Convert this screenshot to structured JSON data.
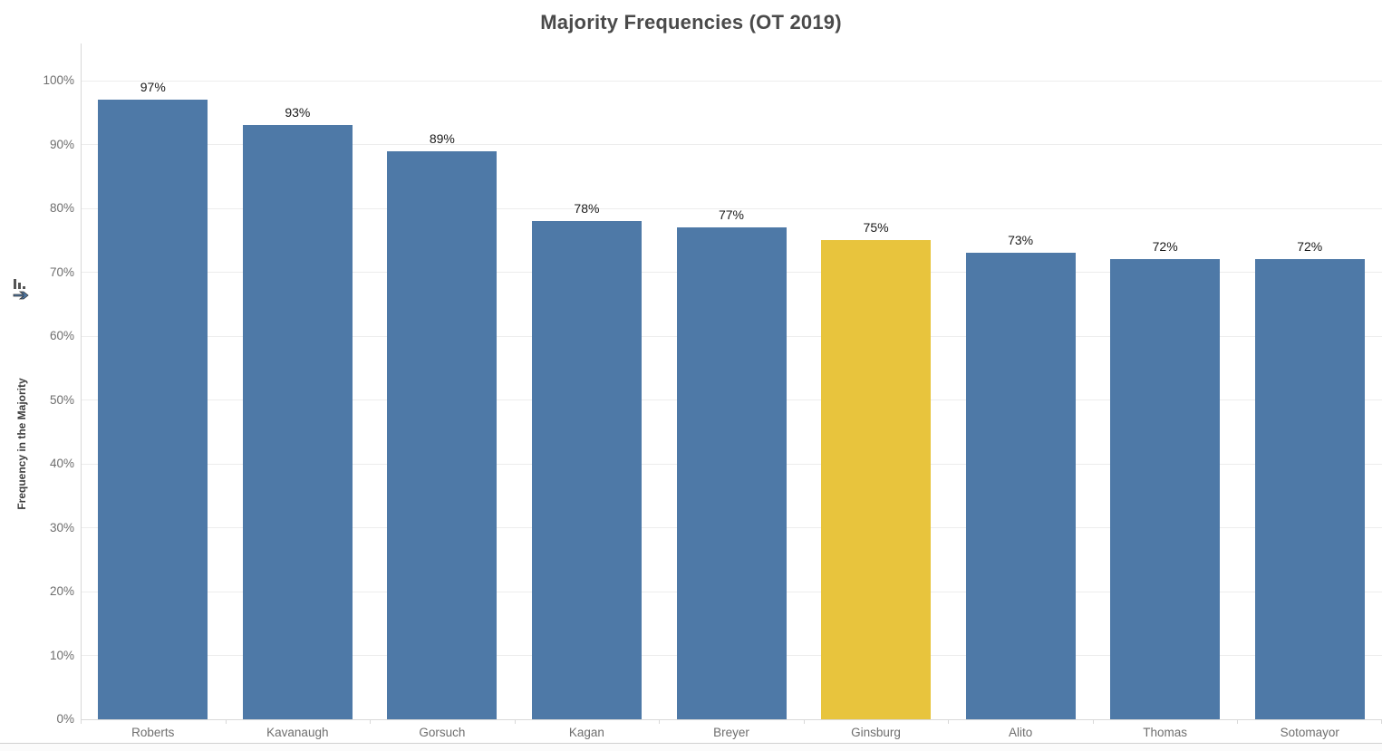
{
  "title": "Majority Frequencies (OT 2019)",
  "y_axis": {
    "label": "Frequency in the Majority",
    "sort_icon": "sort-descending-icon",
    "tick_labels": [
      "0%",
      "10%",
      "20%",
      "30%",
      "40%",
      "50%",
      "60%",
      "70%",
      "80%",
      "90%",
      "100%"
    ]
  },
  "chart_data": {
    "type": "bar",
    "title": "Majority Frequencies (OT 2019)",
    "categories": [
      "Roberts",
      "Kavanaugh",
      "Gorsuch",
      "Kagan",
      "Breyer",
      "Ginsburg",
      "Alito",
      "Thomas",
      "Sotomayor"
    ],
    "values": [
      97,
      93,
      89,
      78,
      77,
      75,
      73,
      72,
      72
    ],
    "value_labels": [
      "97%",
      "93%",
      "89%",
      "78%",
      "77%",
      "75%",
      "73%",
      "72%",
      "72%"
    ],
    "highlighted_category": "Ginsburg",
    "xlabel": "",
    "ylabel": "Frequency in the Majority",
    "ylim": [
      0,
      100
    ],
    "ytick_step": 10,
    "ytick_labels": [
      "0%",
      "10%",
      "20%",
      "30%",
      "40%",
      "50%",
      "60%",
      "70%",
      "80%",
      "90%",
      "100%"
    ],
    "grid": "horizontal",
    "legend": "none",
    "sort": "descending",
    "colors": {
      "bar": "#4E79A7",
      "highlight": "#E8C43D",
      "value_label": "#1a1a1a",
      "axis_text": "#6e6e6e",
      "gridline": "#ededed",
      "axis_line": "#d9d9d9",
      "title": "#4a4a4a"
    }
  }
}
